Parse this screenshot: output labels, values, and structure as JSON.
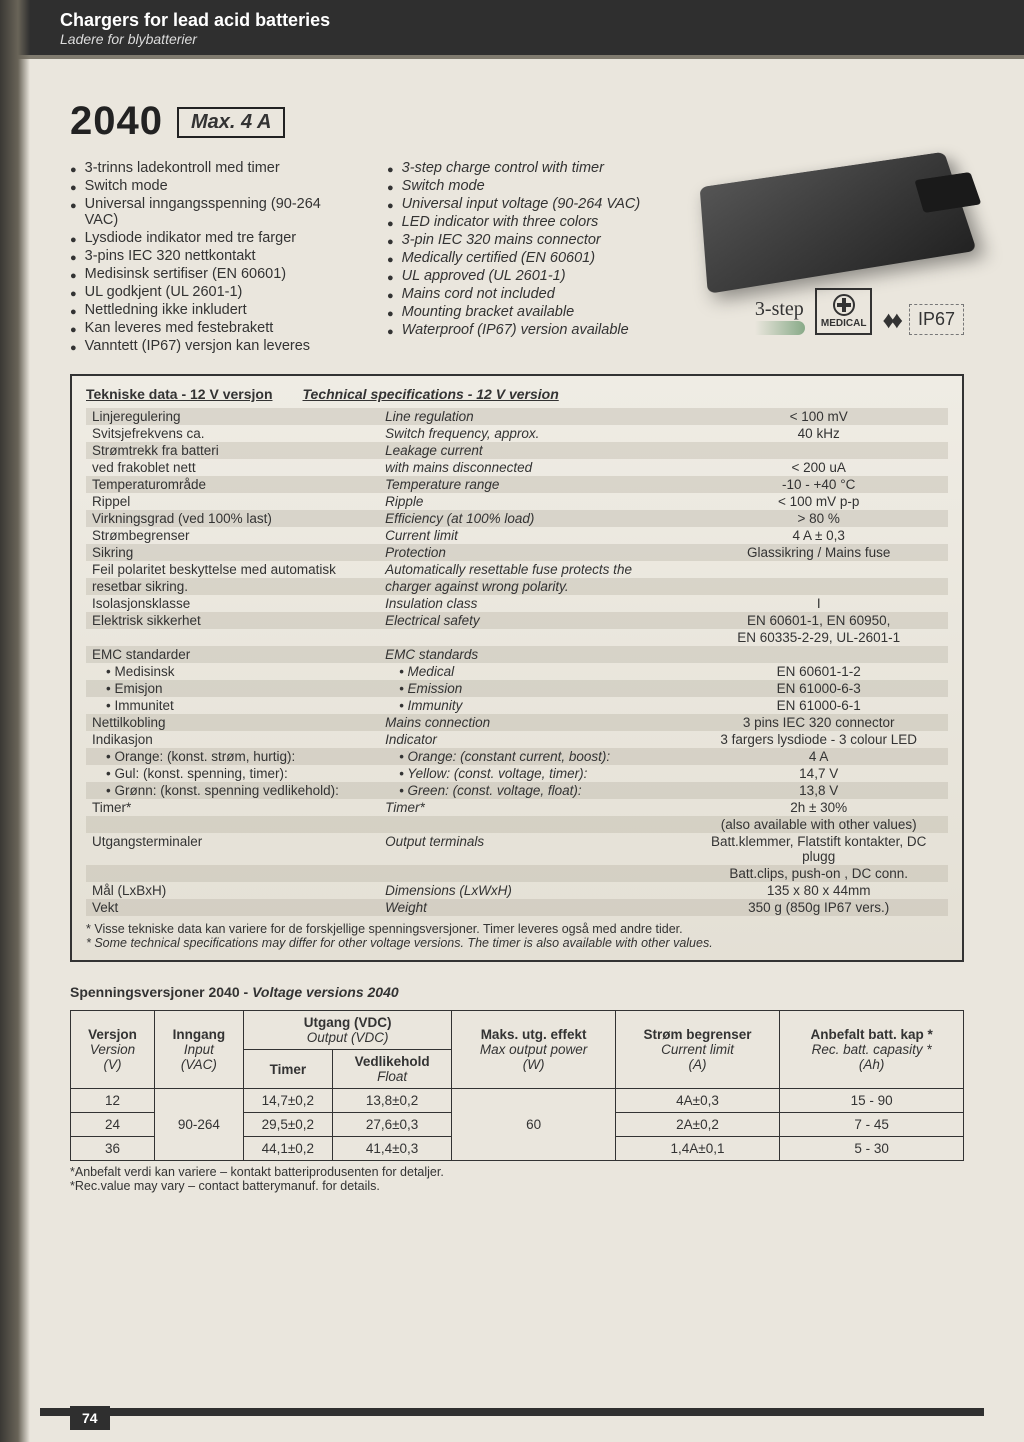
{
  "header": {
    "title_en": "Chargers for lead acid batteries",
    "title_no": "Ladere for blybatterier"
  },
  "model": {
    "number": "2040",
    "max_label": "Max. 4 A"
  },
  "features_no": [
    "3-trinns ladekontroll med timer",
    "Switch mode",
    "Universal inngangsspenning (90-264 VAC)",
    "Lysdiode indikator med tre farger",
    "3-pins IEC 320 nettkontakt",
    "Medisinsk sertifiser (EN 60601)",
    "UL godkjent (UL 2601-1)",
    "Nettledning ikke inkludert",
    "Kan leveres med festebrakett",
    "Vanntett (IP67) versjon kan leveres"
  ],
  "features_en": [
    "3-step charge control with timer",
    "Switch mode",
    "Universal input voltage (90-264 VAC)",
    "LED indicator with three colors",
    "3-pin IEC 320 mains connector",
    "Medically certified (EN 60601)",
    "UL approved (UL 2601-1)",
    "Mains cord not included",
    "Mounting bracket available",
    "Waterproof (IP67) version available"
  ],
  "badges": {
    "step": "3-step",
    "medical": "MEDICAL",
    "ip67": "IP67"
  },
  "spec_header": {
    "no": "Tekniske data - 12 V versjon",
    "en": "Technical specifications - 12 V version"
  },
  "spec_rows": [
    {
      "no": "Linjeregulering",
      "en": "Line regulation",
      "val": "< 100 mV"
    },
    {
      "no": "Svitsjefrekvens ca.",
      "en": "Switch frequency, approx.",
      "val": "40 kHz"
    },
    {
      "no": "Strømtrekk fra batteri",
      "en": "Leakage current",
      "val": ""
    },
    {
      "no": "ved frakoblet nett",
      "en": "with mains disconnected",
      "val": "< 200 uA"
    },
    {
      "no": "Temperaturområde",
      "en": "Temperature range",
      "val": "-10 - +40 °C"
    },
    {
      "no": "Rippel",
      "en": "Ripple",
      "val": "< 100 mV p-p"
    },
    {
      "no": "Virkningsgrad (ved 100% last)",
      "en": "Efficiency (at 100% load)",
      "val": "> 80 %"
    },
    {
      "no": "Strømbegrenser",
      "en": "Current limit",
      "val": "4 A ± 0,3"
    },
    {
      "no": "Sikring",
      "en": "Protection",
      "val": "Glassikring / Mains fuse"
    },
    {
      "no": "Feil polaritet beskyttelse med automatisk",
      "en": "Automatically resettable fuse protects the",
      "val": ""
    },
    {
      "no": "resetbar sikring.",
      "en": "charger against wrong polarity.",
      "val": ""
    },
    {
      "no": "Isolasjonsklasse",
      "en": "Insulation class",
      "val": "I"
    },
    {
      "no": "Elektrisk sikkerhet",
      "en": "Electrical safety",
      "val": "EN 60601-1, EN 60950,"
    },
    {
      "no": "",
      "en": "",
      "val": "EN 60335-2-29, UL-2601-1"
    },
    {
      "no": "EMC standarder",
      "en": "EMC standards",
      "val": ""
    },
    {
      "no": "• Medisinsk",
      "en": "• Medical",
      "val": "EN 60601-1-2",
      "sub": true
    },
    {
      "no": "• Emisjon",
      "en": "• Emission",
      "val": "EN 61000-6-3",
      "sub": true
    },
    {
      "no": "• Immunitet",
      "en": "• Immunity",
      "val": "EN 61000-6-1",
      "sub": true
    },
    {
      "no": "Nettilkobling",
      "en": "Mains connection",
      "val": "3 pins IEC 320 connector"
    },
    {
      "no": "Indikasjon",
      "en": "Indicator",
      "val": "3 fargers lysdiode - 3 colour LED"
    },
    {
      "no": "• Orange: (konst. strøm, hurtig):",
      "en": "• Orange: (constant current, boost):",
      "val": "4 A",
      "sub": true
    },
    {
      "no": "• Gul: (konst. spenning, timer):",
      "en": "• Yellow: (const. voltage, timer):",
      "val": "14,7 V",
      "sub": true
    },
    {
      "no": "• Grønn: (konst. spenning vedlikehold):",
      "en": "• Green: (const. voltage, float):",
      "val": "13,8 V",
      "sub": true
    },
    {
      "no": "Timer*",
      "en": "Timer*",
      "val": "2h ± 30%"
    },
    {
      "no": "",
      "en": "",
      "val": "(also available with other values)"
    },
    {
      "no": "Utgangsterminaler",
      "en": "Output terminals",
      "val": "Batt.klemmer, Flatstift kontakter, DC plugg"
    },
    {
      "no": "",
      "en": "",
      "val": "Batt.clips, push-on , DC conn."
    },
    {
      "no": "Mål (LxBxH)",
      "en": "Dimensions (LxWxH)",
      "val": "135 x 80 x 44mm"
    },
    {
      "no": "Vekt",
      "en": "Weight",
      "val": "350 g (850g IP67 vers.)"
    }
  ],
  "spec_footnote": {
    "no": "* Visse tekniske data kan variere for de forskjellige spenningsversjoner. Timer leveres også med andre tider.",
    "en": "* Some technical specifications may differ for other voltage versions. The timer is also available with other values."
  },
  "voltage_title": {
    "no": "Spenningsversjoner 2040",
    "en": "Voltage versions 2040"
  },
  "vtable": {
    "headers": {
      "version": {
        "no": "Versjon",
        "en": "Version",
        "unit": "(V)"
      },
      "input": {
        "no": "Inngang",
        "en": "Input",
        "unit": "(VAC)"
      },
      "output": {
        "no": "Utgang (VDC)",
        "en": "Output (VDC)",
        "sub1": "Timer",
        "sub2": "Vedlikehold",
        "sub2en": "Float"
      },
      "maxpow": {
        "no": "Maks. utg. effekt",
        "en": "Max output power",
        "unit": "(W)"
      },
      "curlim": {
        "no": "Strøm begrenser",
        "en": "Current limit",
        "unit": "(A)"
      },
      "reccap": {
        "no": "Anbefalt batt. kap *",
        "en": "Rec. batt. capasity *",
        "unit": "(Ah)"
      }
    },
    "rows": [
      {
        "v": "12",
        "in": "90-264",
        "timer": "14,7±0,2",
        "float": "13,8±0,2",
        "pow": "60",
        "cur": "4A±0,3",
        "cap": "15 - 90"
      },
      {
        "v": "24",
        "in": "",
        "timer": "29,5±0,2",
        "float": "27,6±0,3",
        "pow": "",
        "cur": "2A±0,2",
        "cap": "7 - 45"
      },
      {
        "v": "36",
        "in": "",
        "timer": "44,1±0,2",
        "float": "41,4±0,3",
        "pow": "",
        "cur": "1,4A±0,1",
        "cap": "5 - 30"
      }
    ]
  },
  "vfoot": {
    "no": "*Anbefalt verdi kan variere – kontakt batteriprodusenten for detaljer.",
    "en": "*Rec.value may vary – contact batterymanuf. for details."
  },
  "page_number": "74",
  "colors": {
    "page_bg": "#eae6dd",
    "header_bg": "#2f2f2f",
    "border": "#333333",
    "stripe": "rgba(180,175,160,.35)"
  }
}
